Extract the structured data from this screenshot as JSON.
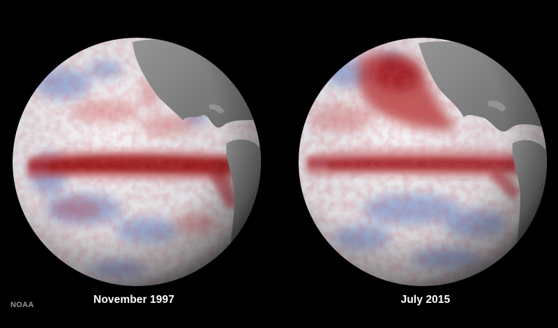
{
  "image": {
    "credit": "NOAA",
    "background_color": "#000000",
    "globes": [
      {
        "caption": "November 1997",
        "colors": {
          "warm": "#a8181c",
          "cool": "#4a6ec0",
          "neutral": "#f0f0f2",
          "land": "#8a8a8a"
        }
      },
      {
        "caption": "July 2015",
        "colors": {
          "warm": "#a8181c",
          "cool": "#4a6ec0",
          "neutral": "#f0f0f2",
          "land": "#8a8a8a"
        }
      }
    ]
  }
}
